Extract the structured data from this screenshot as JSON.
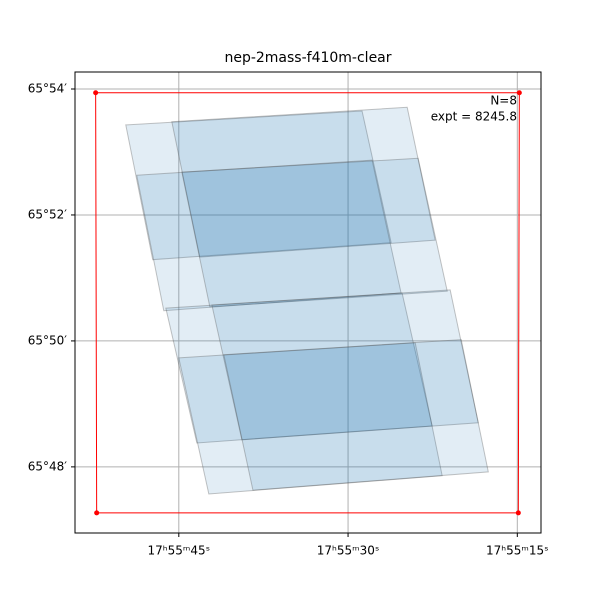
{
  "chart_data": {
    "type": "footprint",
    "title": "nep-2mass-f410m-clear",
    "xlim": [
      54.2,
      12.9
    ],
    "ylim": [
      46.95,
      54.27
    ],
    "xticks": [
      {
        "value": 45,
        "label": "17ʰ55ᵐ45ˢ"
      },
      {
        "value": 30,
        "label": "17ʰ55ᵐ30ˢ"
      },
      {
        "value": 15,
        "label": "17ʰ55ᵐ15ˢ"
      }
    ],
    "yticks": [
      {
        "value": 48,
        "label": "65°48′"
      },
      {
        "value": 50,
        "label": "65°50′"
      },
      {
        "value": 52,
        "label": "65°52′"
      },
      {
        "value": 54,
        "label": "65°54′"
      }
    ],
    "grid": true,
    "color": "#1f77b4",
    "box_color": "#ff0000",
    "annotations": [
      "N=8",
      "expt = 8245.8"
    ],
    "footprints": [
      {
        "ra": [
          49.7,
          28.76,
          26.18,
          47.31
        ],
        "dec": [
          53.43,
          53.65,
          51.56,
          51.29
        ]
      },
      {
        "ra": [
          45.62,
          24.76,
          22.28,
          43.14
        ],
        "dec": [
          53.48,
          53.71,
          51.6,
          51.33
        ]
      },
      {
        "ra": [
          48.73,
          27.87,
          25.3,
          46.33
        ],
        "dec": [
          52.63,
          52.87,
          50.76,
          50.48
        ]
      },
      {
        "ra": [
          44.73,
          23.79,
          21.21,
          42.25
        ],
        "dec": [
          52.68,
          52.9,
          50.79,
          50.54
        ]
      },
      {
        "ra": [
          46.15,
          25.21,
          22.55,
          43.4
        ],
        "dec": [
          50.52,
          50.76,
          48.65,
          48.38
        ]
      },
      {
        "ra": [
          42.07,
          20.95,
          18.46,
          39.41
        ],
        "dec": [
          50.57,
          50.81,
          48.7,
          48.43
        ]
      },
      {
        "ra": [
          45.0,
          24.05,
          21.66,
          42.34
        ],
        "dec": [
          49.73,
          49.97,
          47.86,
          47.57
        ]
      },
      {
        "ra": [
          41.01,
          19.97,
          17.57,
          38.43
        ],
        "dec": [
          49.78,
          50.02,
          47.92,
          47.63
        ]
      }
    ],
    "box": {
      "ra": [
        52.37,
        14.82,
        14.91,
        52.28
      ],
      "dec": [
        53.94,
        53.94,
        47.27,
        47.27
      ]
    }
  }
}
